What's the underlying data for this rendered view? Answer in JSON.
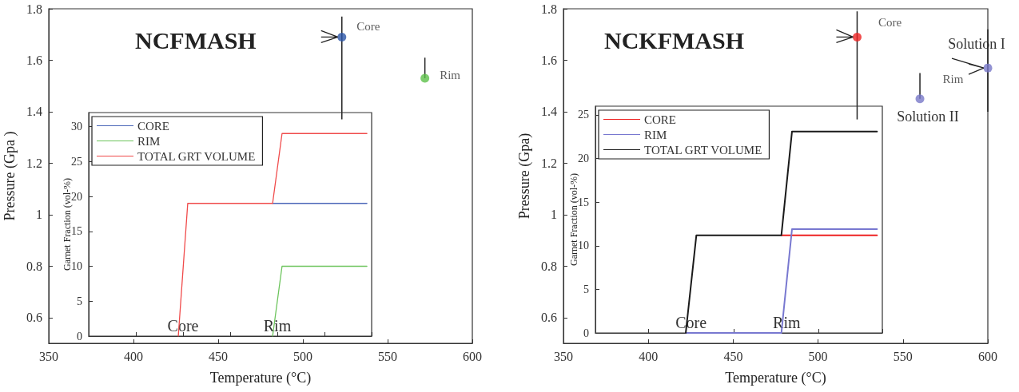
{
  "chart_data": [
    {
      "type": "scatter",
      "title": "NCFMASH",
      "xlabel": "Temperature (°C)",
      "ylabel": "Pressure (Gpa )",
      "xlim": [
        350,
        600
      ],
      "xticks": [
        350,
        400,
        450,
        500,
        550,
        600
      ],
      "ylim": [
        0.5,
        1.8
      ],
      "yticks": [
        0.6,
        0.8,
        1,
        1.2,
        1.4,
        1.6,
        1.8
      ],
      "marker": "circle",
      "series": [
        {
          "name": "Core",
          "color": "#2b55a8",
          "x": [
            523
          ],
          "values": [
            1.69
          ],
          "errors": [
            [
              1.37,
              1.77
            ]
          ]
        },
        {
          "name": "Rim",
          "color": "#5cc04a",
          "x": [
            572
          ],
          "values": [
            1.53
          ],
          "errors": [
            [
              1.53,
              1.61
            ]
          ]
        }
      ]
    },
    {
      "type": "line",
      "ylabel": "Garnet Fraction (vol-%)",
      "categories": [
        null,
        null,
        null,
        null,
        null,
        null,
        null,
        null,
        null,
        null,
        null,
        null,
        null,
        null,
        null,
        null,
        null,
        null,
        null,
        null,
        null,
        null,
        null,
        null,
        null,
        null,
        null,
        null,
        null,
        null
      ],
      "ylim": [
        0,
        32
      ],
      "yticks": [
        0,
        5,
        10,
        15,
        20,
        25,
        30
      ],
      "tick_labels": "y",
      "legend": "top left",
      "marker": "none",
      "line_style": "solid",
      "annotations": [
        "Core",
        "Rim"
      ],
      "series": [
        {
          "name": "CORE",
          "color": "#4a66b8",
          "values": [
            null,
            null,
            null,
            null,
            null,
            null,
            null,
            null,
            null,
            null,
            null,
            null,
            null,
            null,
            null,
            null,
            null,
            null,
            null,
            19,
            19,
            19,
            19,
            19,
            19,
            19,
            19,
            19,
            19,
            19
          ]
        },
        {
          "name": "RIM",
          "color": "#6cc45c",
          "values": [
            null,
            null,
            null,
            null,
            null,
            null,
            null,
            null,
            null,
            null,
            null,
            null,
            null,
            null,
            null,
            null,
            null,
            null,
            null,
            0,
            10,
            10,
            10,
            10,
            10,
            10,
            10,
            10,
            10,
            10
          ]
        },
        {
          "name": "TOTAL GRT VOLUME",
          "color": "#f04a4a",
          "values": [
            null,
            null,
            null,
            null,
            null,
            null,
            null,
            null,
            null,
            0,
            19,
            19,
            19,
            19,
            19,
            19,
            19,
            19,
            19,
            19,
            29,
            29,
            29,
            29,
            29,
            29,
            29,
            29,
            29,
            29
          ]
        }
      ]
    },
    {
      "type": "scatter",
      "title": "NCKFMASH",
      "xlabel": "Temperature (°C)",
      "ylabel": "Pressure (Gpa)",
      "xlim": [
        350,
        600
      ],
      "xticks": [
        350,
        400,
        450,
        500,
        550,
        600
      ],
      "ylim": [
        0.5,
        1.8
      ],
      "yticks": [
        0.6,
        0.8,
        1,
        1.2,
        1.4,
        1.6,
        1.8
      ],
      "marker": "circle",
      "annotations": [
        {
          "text": "Solution II",
          "x": 560,
          "y": 1.45
        },
        {
          "text": "Solution I",
          "x": 600,
          "y": 1.57
        }
      ],
      "series": [
        {
          "name": "Core",
          "color": "#ee2222",
          "x": [
            523
          ],
          "values": [
            1.69
          ],
          "errors": [
            [
              1.37,
              1.79
            ]
          ]
        },
        {
          "name": "Rim",
          "color": "#7878c8",
          "x": [
            560,
            600
          ],
          "values": [
            1.45,
            1.57
          ],
          "errors": [
            [
              1.45,
              1.55
            ],
            [
              1.4,
              1.72
            ]
          ]
        }
      ]
    },
    {
      "type": "line",
      "ylabel": "Garnet Fraction (vol-%)",
      "categories": [
        null,
        null,
        null,
        null,
        null,
        null,
        null,
        null,
        null,
        null,
        null,
        null,
        null,
        null,
        null,
        null,
        null,
        null,
        null,
        null,
        null,
        null,
        null,
        null,
        null,
        null,
        null
      ],
      "ylim": [
        0,
        26
      ],
      "yticks": [
        0,
        5,
        10,
        15,
        20,
        25
      ],
      "tick_labels": "y",
      "legend": "top left",
      "marker": "none",
      "line_style": "solid",
      "annotations": [
        "Core",
        "Rim"
      ],
      "series": [
        {
          "name": "CORE",
          "color": "#ee2222",
          "values": [
            null,
            null,
            null,
            null,
            null,
            null,
            null,
            null,
            null,
            null,
            null,
            null,
            null,
            null,
            null,
            null,
            null,
            11.2,
            11.2,
            11.2,
            11.2,
            11.2,
            11.2,
            11.2,
            11.2,
            11.2,
            11.2
          ]
        },
        {
          "name": "RIM",
          "color": "#7878d0",
          "values": [
            null,
            null,
            null,
            null,
            null,
            null,
            null,
            null,
            0,
            0,
            0,
            0,
            0,
            0,
            0,
            0,
            0,
            0,
            11.9,
            11.9,
            11.9,
            11.9,
            11.9,
            11.9,
            11.9,
            11.9,
            11.9
          ]
        },
        {
          "name": "TOTAL GRT VOLUME",
          "color": "#1a1a1a",
          "values": [
            null,
            null,
            null,
            null,
            null,
            null,
            null,
            null,
            0,
            11.2,
            11.2,
            11.2,
            11.2,
            11.2,
            11.2,
            11.2,
            11.2,
            11.2,
            23.1,
            23.1,
            23.1,
            23.1,
            23.1,
            23.1,
            23.1,
            23.1,
            23.1
          ]
        }
      ]
    }
  ]
}
